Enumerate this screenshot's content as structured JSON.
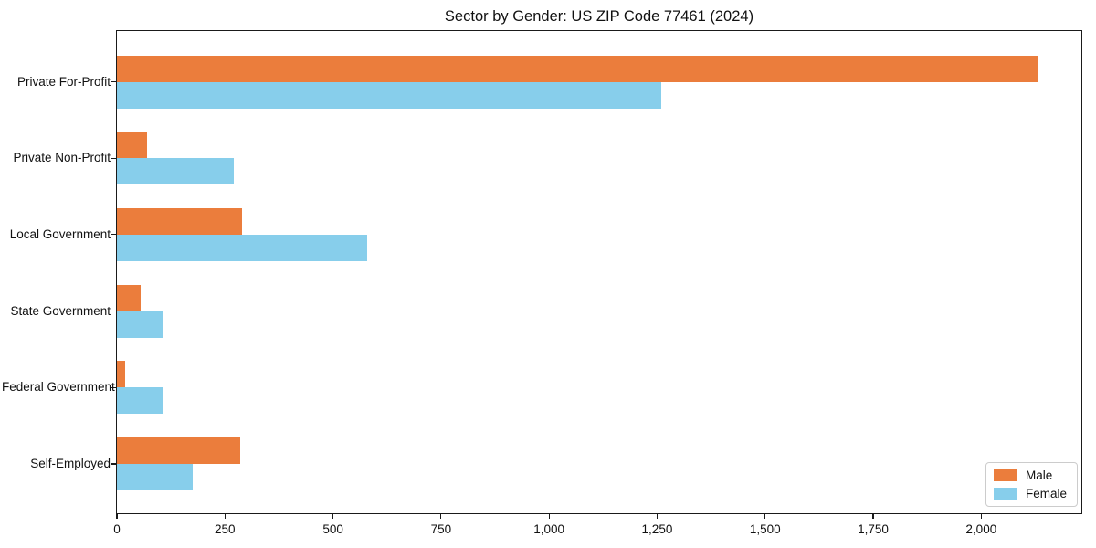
{
  "title": "Sector by Gender: US ZIP Code 77461 (2024)",
  "legend": {
    "items": [
      {
        "label": "Male",
        "color": "#EB7D3C"
      },
      {
        "label": "Female",
        "color": "#87CEEB"
      }
    ]
  },
  "chart_data": {
    "type": "bar",
    "orientation": "horizontal",
    "title": "Sector by Gender: US ZIP Code 77461 (2024)",
    "categories": [
      "Private For-Profit",
      "Private Non-Profit",
      "Local Government",
      "State Government",
      "Federal Government",
      "Self-Employed"
    ],
    "series": [
      {
        "name": "Male",
        "color": "#EB7D3C",
        "values": [
          2130,
          70,
          290,
          55,
          20,
          285
        ]
      },
      {
        "name": "Female",
        "color": "#87CEEB",
        "values": [
          1260,
          270,
          580,
          105,
          105,
          175
        ]
      }
    ],
    "xlabel": "",
    "ylabel": "",
    "xlim": [
      0,
      2236
    ],
    "x_ticks": [
      0,
      250,
      500,
      750,
      1000,
      1250,
      1500,
      1750,
      2000
    ],
    "x_tick_labels": [
      "0",
      "250",
      "500",
      "750",
      "1,000",
      "1,250",
      "1,500",
      "1,750",
      "2,000"
    ],
    "grid": false,
    "legend_position": "lower right"
  }
}
